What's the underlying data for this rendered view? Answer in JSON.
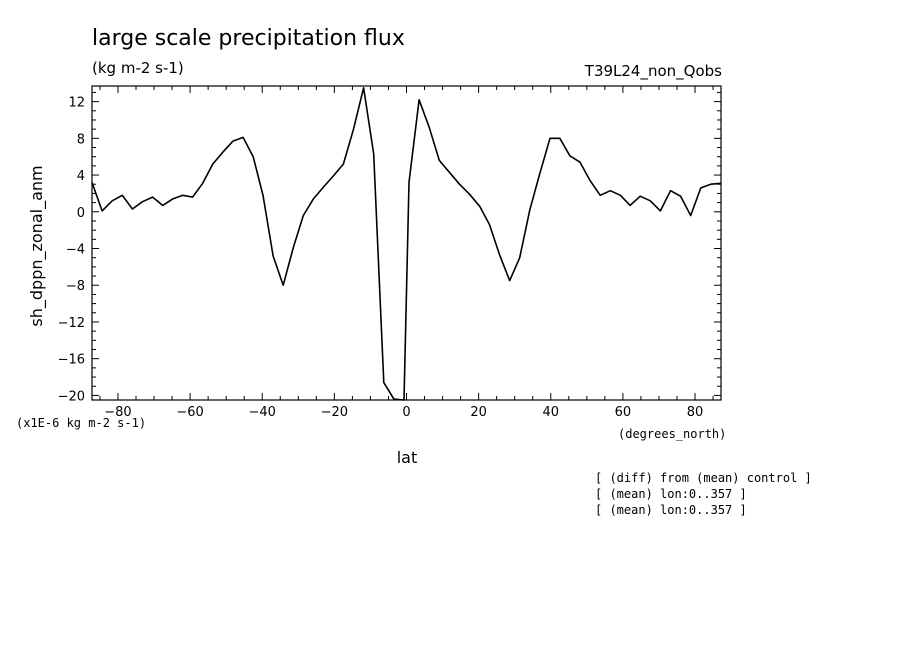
{
  "header": {
    "title": "large scale precipitation flux",
    "units": "(kg m-2 s-1)",
    "run": "T39L24_non_Qobs"
  },
  "footnotes": {
    "scale": "(x1E-6 kg m-2 s-1)",
    "x_units": "(degrees_north)",
    "lines": [
      "[ (diff) from (mean) control ]",
      "[ (mean) lon:0..357 ]",
      "[ (mean) lon:0..357 ]"
    ]
  },
  "chart_data": {
    "type": "line",
    "title": "large scale precipitation flux",
    "xlabel": "lat",
    "ylabel": "sh_dppn_zonal_anm",
    "xlim": [
      -87.2,
      87.2
    ],
    "ylim": [
      -20.5,
      13.7
    ],
    "xticks": [
      -80,
      -60,
      -40,
      -20,
      0,
      20,
      40,
      60,
      80
    ],
    "yticks": [
      -20,
      -16,
      -12,
      -8,
      -4,
      0,
      4,
      8,
      12
    ],
    "grid": false,
    "series": [
      {
        "color": "#000000",
        "x": [
          -87.2,
          -84.4,
          -81.6,
          -78.8,
          -76.0,
          -73.2,
          -70.4,
          -67.6,
          -64.8,
          -62.0,
          -59.3,
          -56.5,
          -53.7,
          -50.9,
          -48.1,
          -45.3,
          -42.5,
          -39.8,
          -37.0,
          -34.2,
          -31.4,
          -28.6,
          -25.8,
          -23.0,
          -20.3,
          -17.5,
          -14.7,
          -11.9,
          -9.1,
          -6.3,
          -3.5,
          -0.7,
          0.7,
          3.5,
          6.3,
          9.1,
          11.9,
          14.7,
          17.5,
          20.3,
          23.0,
          25.8,
          28.6,
          31.4,
          34.2,
          37.0,
          39.8,
          42.5,
          45.3,
          48.1,
          50.9,
          53.7,
          56.5,
          59.3,
          62.0,
          64.8,
          67.6,
          70.4,
          73.2,
          76.0,
          78.8,
          81.6,
          84.4,
          87.2
        ],
        "values": [
          3.2,
          0.1,
          1.2,
          1.8,
          0.3,
          1.1,
          1.6,
          0.7,
          1.4,
          1.8,
          1.6,
          3.1,
          5.2,
          6.5,
          7.7,
          8.1,
          6.0,
          1.8,
          -4.8,
          -8.0,
          -3.9,
          -0.4,
          1.4,
          2.7,
          3.9,
          5.2,
          9.0,
          13.5,
          6.3,
          -18.6,
          -20.4,
          -20.5,
          3.2,
          12.2,
          9.2,
          5.6,
          4.3,
          3.0,
          1.9,
          0.6,
          -1.4,
          -4.7,
          -7.5,
          -5.0,
          0.2,
          4.2,
          8.0,
          8.0,
          6.1,
          5.4,
          3.4,
          1.8,
          2.3,
          1.8,
          0.7,
          1.7,
          1.2,
          0.1,
          2.3,
          1.7,
          -0.4,
          2.6,
          3.0,
          3.1
        ]
      }
    ]
  }
}
